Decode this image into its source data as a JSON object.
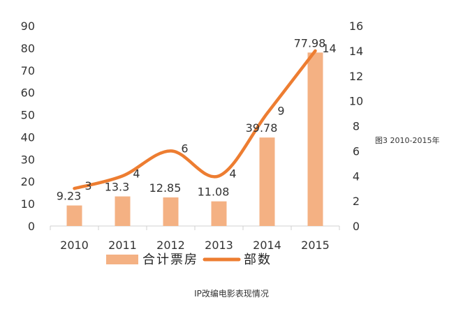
{
  "side_note": "图3 2010-2015年",
  "caption": "IP改编电影表现情况",
  "colors": {
    "bar": "#F4B183",
    "line": "#ED7D31"
  },
  "chart_data": {
    "type": "bar+line",
    "categories": [
      "2010",
      "2011",
      "2012",
      "2013",
      "2014",
      "2015"
    ],
    "series": [
      {
        "name": "合计票房",
        "type": "bar",
        "axis": "left",
        "values": [
          9.23,
          13.3,
          12.85,
          11.08,
          39.78,
          77.98
        ],
        "labels": [
          "9.23",
          "13.3",
          "12.85",
          "11.08",
          "39.78",
          "77.98"
        ]
      },
      {
        "name": "部数",
        "type": "line",
        "axis": "right",
        "values": [
          3,
          4,
          6,
          4,
          9,
          14
        ],
        "labels": [
          "3",
          "4",
          "6",
          "4",
          "9",
          "14"
        ]
      }
    ],
    "y_left": {
      "min": 0,
      "max": 90,
      "ticks": [
        "0",
        "10",
        "20",
        "30",
        "40",
        "50",
        "60",
        "70",
        "80",
        "90"
      ]
    },
    "y_right": {
      "min": 0,
      "max": 16,
      "ticks": [
        "0",
        "2",
        "4",
        "6",
        "8",
        "10",
        "12",
        "14",
        "16"
      ]
    },
    "grid": false,
    "legend": {
      "position": "bottom",
      "entries": [
        "合计票房",
        "部数"
      ]
    }
  }
}
